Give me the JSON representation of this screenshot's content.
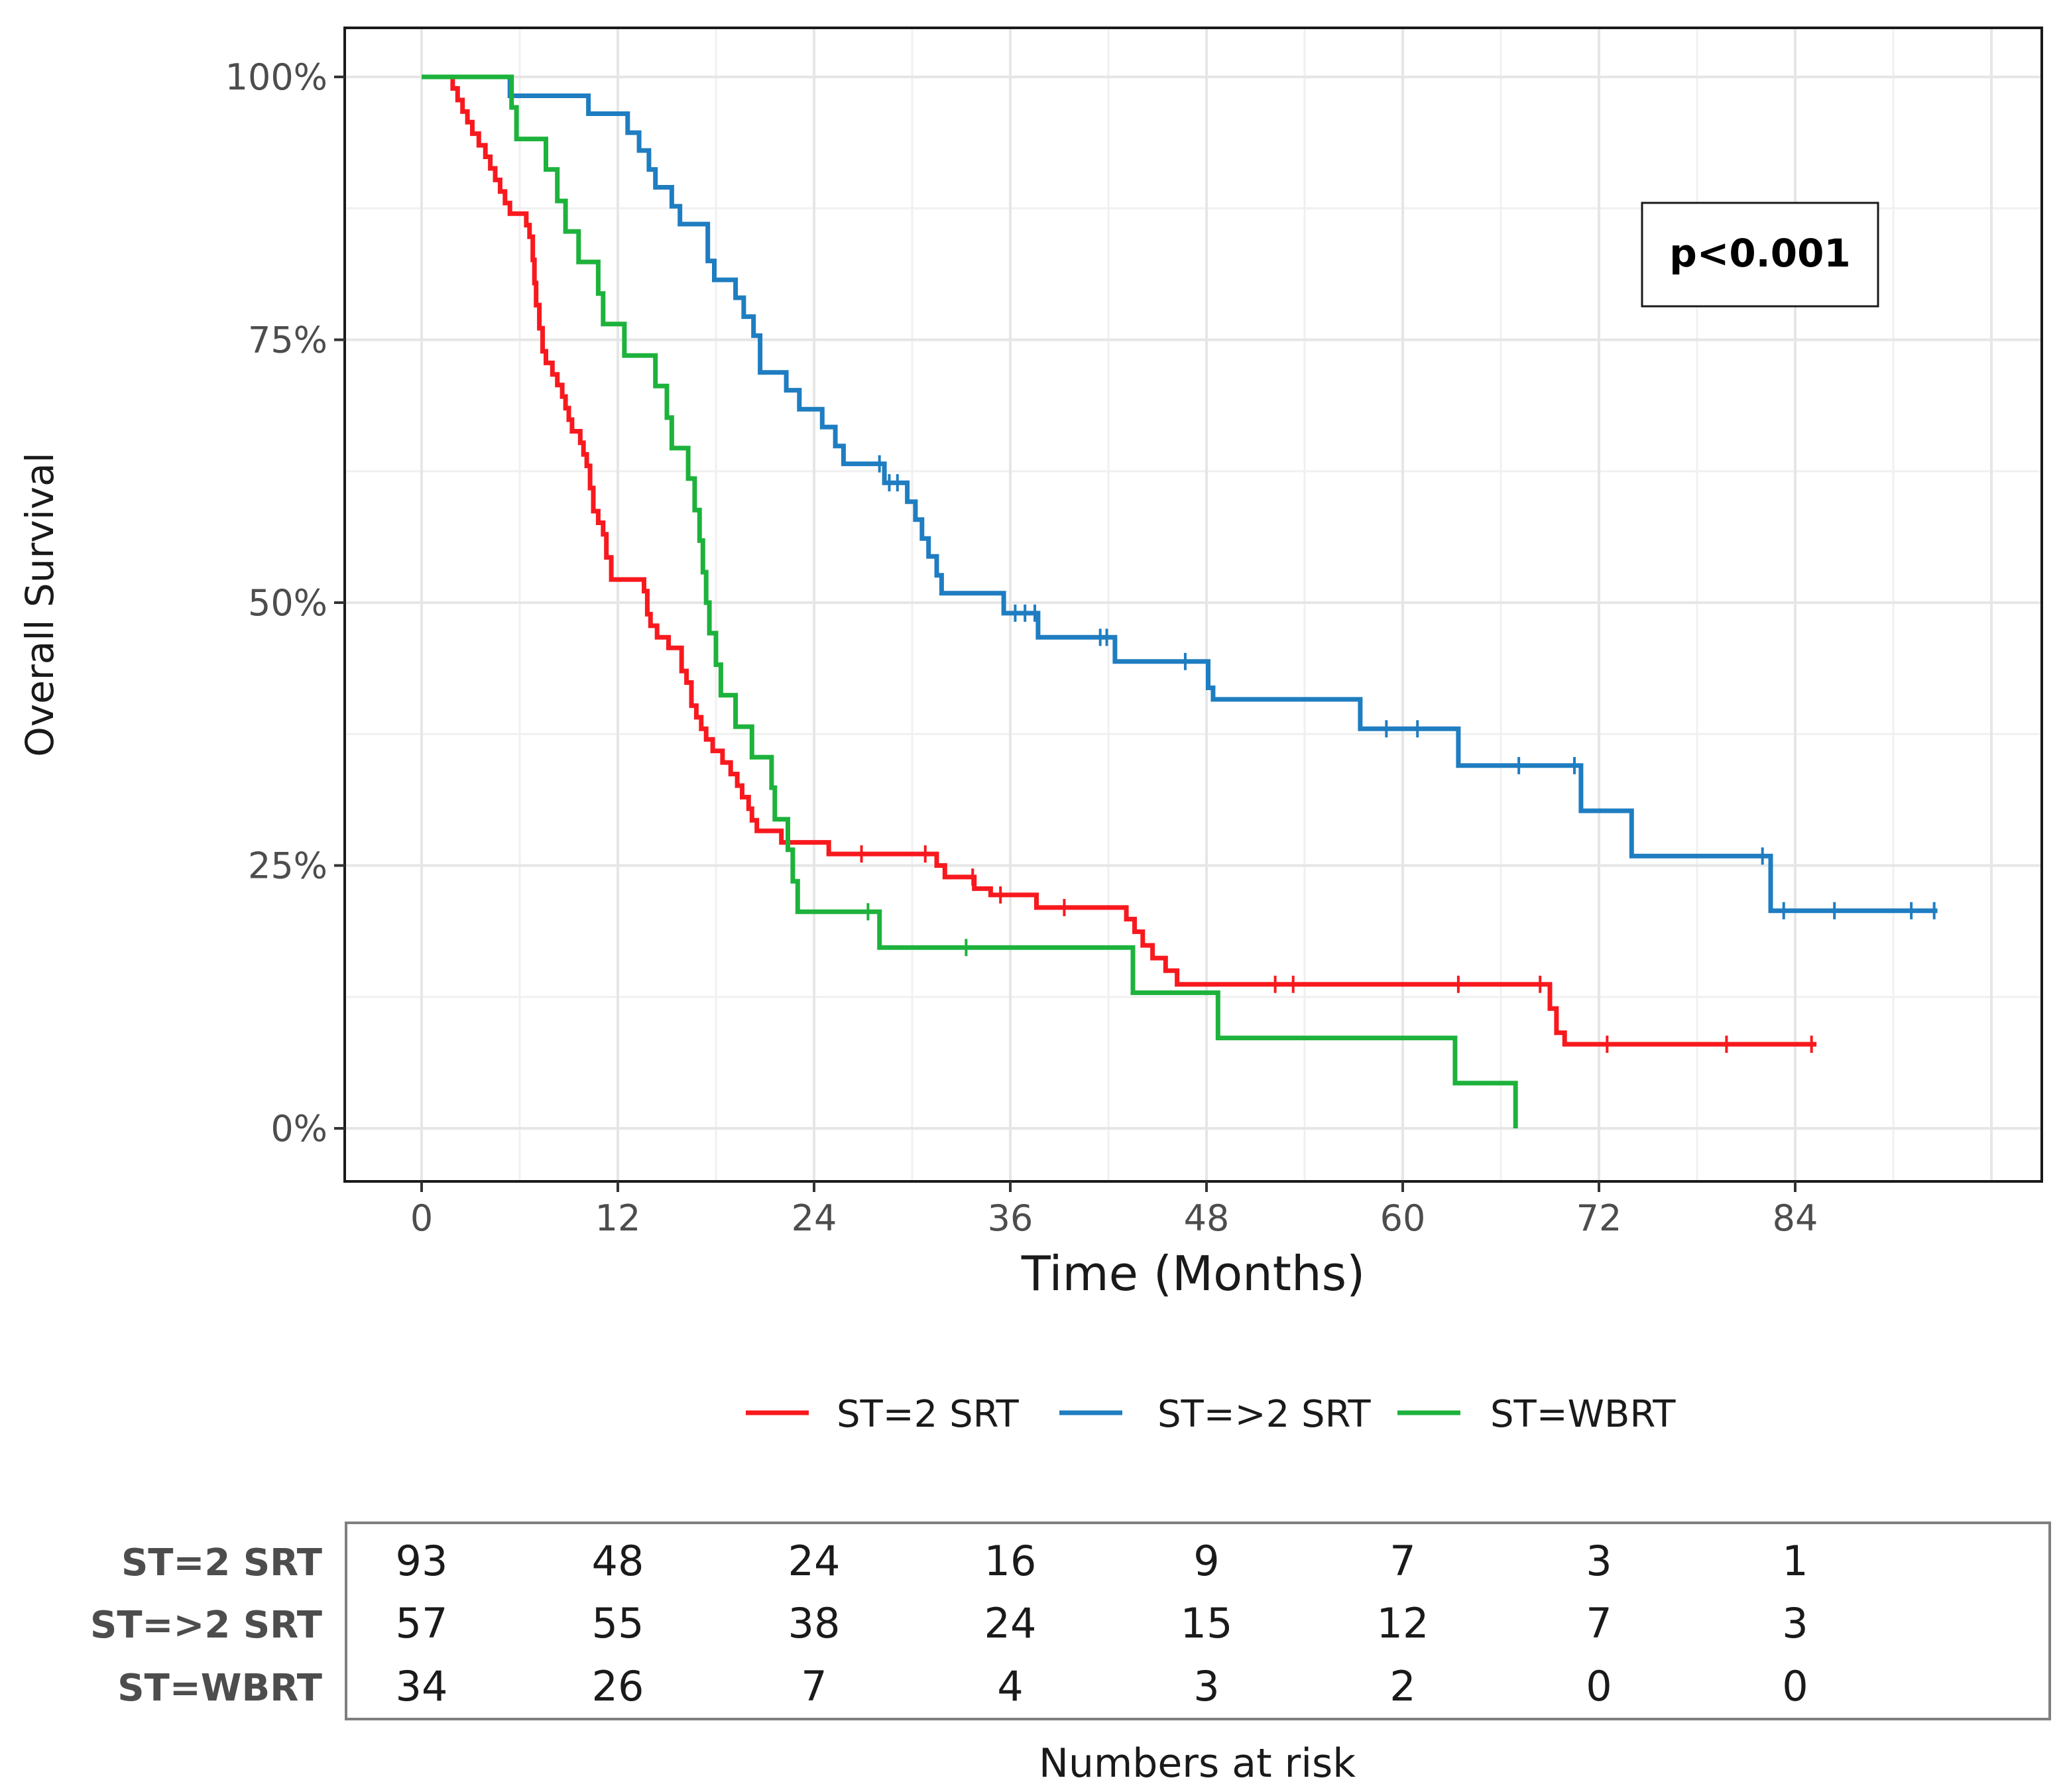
{
  "chart_data": {
    "type": "line",
    "subtype": "kaplan-meier",
    "title": "",
    "xlabel": "Time (Months)",
    "ylabel": "Overall Survival",
    "xlim": [
      -5,
      103
    ],
    "ylim": [
      -0.05,
      1.05
    ],
    "x_ticks": [
      0,
      12,
      24,
      36,
      48,
      60,
      72,
      84
    ],
    "x_tick_labels": [
      "0",
      "12",
      "24",
      "36",
      "48",
      "60",
      "72",
      "84"
    ],
    "y_ticks": [
      0,
      0.25,
      0.5,
      0.75,
      1.0
    ],
    "y_tick_labels": [
      "0%",
      "25%",
      "50%",
      "75%",
      "100%"
    ],
    "grid": true,
    "annotation": "p<0.001",
    "series": [
      {
        "name": "ST=2 SRT",
        "color": "#f8191e",
        "steps": [
          [
            0,
            1.0
          ],
          [
            1.7,
            1.0
          ],
          [
            1.9,
            0.989
          ],
          [
            2.2,
            0.978
          ],
          [
            2.5,
            0.967
          ],
          [
            2.8,
            0.957
          ],
          [
            3.1,
            0.946
          ],
          [
            3.5,
            0.935
          ],
          [
            3.9,
            0.924
          ],
          [
            4.2,
            0.913
          ],
          [
            4.5,
            0.902
          ],
          [
            4.8,
            0.891
          ],
          [
            5.1,
            0.88
          ],
          [
            5.4,
            0.87
          ],
          [
            6.4,
            0.859
          ],
          [
            6.6,
            0.848
          ],
          [
            6.8,
            0.826
          ],
          [
            6.9,
            0.804
          ],
          [
            7.0,
            0.783
          ],
          [
            7.2,
            0.761
          ],
          [
            7.4,
            0.739
          ],
          [
            7.6,
            0.728
          ],
          [
            8.0,
            0.717
          ],
          [
            8.3,
            0.707
          ],
          [
            8.6,
            0.696
          ],
          [
            8.8,
            0.685
          ],
          [
            9.0,
            0.674
          ],
          [
            9.2,
            0.663
          ],
          [
            9.7,
            0.652
          ],
          [
            9.9,
            0.641
          ],
          [
            10.1,
            0.63
          ],
          [
            10.3,
            0.609
          ],
          [
            10.5,
            0.587
          ],
          [
            10.8,
            0.576
          ],
          [
            11.1,
            0.565
          ],
          [
            11.3,
            0.543
          ],
          [
            11.6,
            0.522
          ],
          [
            13.6,
            0.511
          ],
          [
            13.8,
            0.489
          ],
          [
            14.0,
            0.478
          ],
          [
            14.4,
            0.467
          ],
          [
            15.1,
            0.457
          ],
          [
            15.9,
            0.435
          ],
          [
            16.2,
            0.424
          ],
          [
            16.5,
            0.402
          ],
          [
            16.8,
            0.391
          ],
          [
            17.1,
            0.38
          ],
          [
            17.4,
            0.37
          ],
          [
            17.8,
            0.359
          ],
          [
            18.4,
            0.348
          ],
          [
            18.9,
            0.337
          ],
          [
            19.3,
            0.326
          ],
          [
            19.6,
            0.315
          ],
          [
            20.0,
            0.304
          ],
          [
            20.2,
            0.293
          ],
          [
            20.5,
            0.283
          ],
          [
            22.0,
            0.272
          ],
          [
            24.9,
            0.261
          ],
          [
            31.5,
            0.25
          ],
          [
            32.0,
            0.239
          ],
          [
            33.8,
            0.228
          ],
          [
            34.8,
            0.222
          ],
          [
            37.6,
            0.21
          ],
          [
            43.1,
            0.199
          ],
          [
            43.6,
            0.187
          ],
          [
            44.1,
            0.174
          ],
          [
            44.7,
            0.162
          ],
          [
            45.5,
            0.15
          ],
          [
            46.2,
            0.137
          ],
          [
            69.0,
            0.114
          ],
          [
            69.4,
            0.091
          ],
          [
            69.9,
            0.08
          ],
          [
            85.3,
            0.08
          ]
        ],
        "censor_times": [
          26.9,
          30.8,
          33.7,
          35.4,
          39.3,
          52.2,
          53.3,
          63.4,
          68.4,
          72.5,
          79.8,
          85.0
        ],
        "at_risk": [
          93,
          48,
          24,
          16,
          9,
          7,
          3,
          1
        ]
      },
      {
        "name": "ST=>2 SRT",
        "color": "#1f7dc1",
        "steps": [
          [
            0,
            1.0
          ],
          [
            5.4,
            0.982
          ],
          [
            10.2,
            0.965
          ],
          [
            12.6,
            0.947
          ],
          [
            13.3,
            0.93
          ],
          [
            13.9,
            0.912
          ],
          [
            14.3,
            0.895
          ],
          [
            15.3,
            0.877
          ],
          [
            15.8,
            0.86
          ],
          [
            17.5,
            0.825
          ],
          [
            17.9,
            0.807
          ],
          [
            19.2,
            0.79
          ],
          [
            19.7,
            0.772
          ],
          [
            20.3,
            0.754
          ],
          [
            20.7,
            0.719
          ],
          [
            22.3,
            0.702
          ],
          [
            23.1,
            0.684
          ],
          [
            24.5,
            0.667
          ],
          [
            25.3,
            0.649
          ],
          [
            25.8,
            0.632
          ],
          [
            28.3,
            0.614
          ],
          [
            29.7,
            0.596
          ],
          [
            30.2,
            0.579
          ],
          [
            30.6,
            0.561
          ],
          [
            31.0,
            0.544
          ],
          [
            31.5,
            0.526
          ],
          [
            31.8,
            0.509
          ],
          [
            35.6,
            0.49
          ],
          [
            37.7,
            0.467
          ],
          [
            42.4,
            0.444
          ],
          [
            48.1,
            0.419
          ],
          [
            48.4,
            0.408
          ],
          [
            57.4,
            0.38
          ],
          [
            63.4,
            0.345
          ],
          [
            70.9,
            0.302
          ],
          [
            74.0,
            0.259
          ],
          [
            82.5,
            0.207
          ],
          [
            92.7,
            0.207
          ]
        ],
        "censor_times": [
          28.0,
          28.6,
          29.1,
          36.3,
          36.9,
          37.5,
          41.5,
          41.9,
          46.7,
          59.0,
          60.9,
          67.1,
          70.5,
          82.0,
          83.3,
          86.4,
          91.1,
          92.5
        ],
        "at_risk": [
          57,
          55,
          38,
          24,
          15,
          12,
          7,
          3
        ]
      },
      {
        "name": "ST=WBRT",
        "color": "#1db23c",
        "steps": [
          [
            0,
            1.0
          ],
          [
            5.5,
            0.971
          ],
          [
            5.8,
            0.941
          ],
          [
            7.6,
            0.912
          ],
          [
            8.3,
            0.882
          ],
          [
            8.8,
            0.853
          ],
          [
            9.6,
            0.824
          ],
          [
            10.8,
            0.794
          ],
          [
            11.1,
            0.765
          ],
          [
            12.4,
            0.735
          ],
          [
            14.3,
            0.706
          ],
          [
            15.0,
            0.676
          ],
          [
            15.3,
            0.647
          ],
          [
            16.3,
            0.618
          ],
          [
            16.7,
            0.588
          ],
          [
            17.0,
            0.559
          ],
          [
            17.2,
            0.529
          ],
          [
            17.4,
            0.5
          ],
          [
            17.6,
            0.471
          ],
          [
            18.0,
            0.441
          ],
          [
            18.3,
            0.412
          ],
          [
            19.2,
            0.382
          ],
          [
            20.2,
            0.353
          ],
          [
            21.4,
            0.324
          ],
          [
            21.6,
            0.294
          ],
          [
            22.4,
            0.265
          ],
          [
            22.7,
            0.235
          ],
          [
            23.0,
            0.206
          ],
          [
            28.0,
            0.172
          ],
          [
            43.5,
            0.129
          ],
          [
            48.7,
            0.086
          ],
          [
            63.2,
            0.043
          ],
          [
            66.9,
            0.0
          ]
        ],
        "censor_times": [
          27.3,
          33.3
        ],
        "at_risk": [
          34,
          26,
          7,
          4,
          3,
          2,
          0,
          0
        ]
      }
    ],
    "risk_table": {
      "caption": "Numbers at risk",
      "times": [
        0,
        12,
        24,
        36,
        48,
        60,
        72,
        84
      ]
    }
  }
}
